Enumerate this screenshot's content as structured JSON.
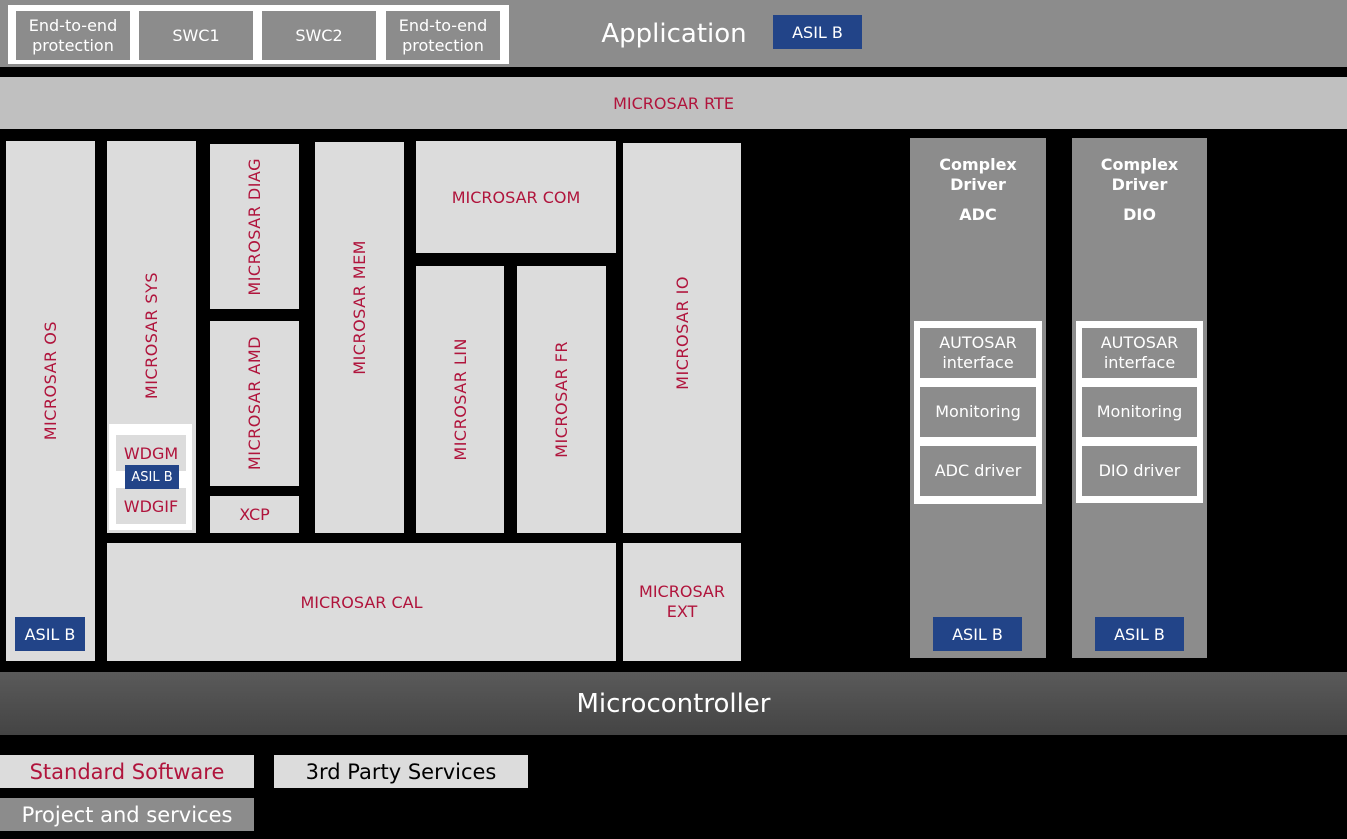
{
  "colors": {
    "background": "#000000",
    "application_band": "#8c8c8c",
    "rte_band": "#c0c0c0",
    "standard_module": "#dcdcdc",
    "standard_text": "#b0143c",
    "asil_badge": "#224488",
    "microcontroller_band": "#4d4d4d"
  },
  "application": {
    "title": "Application",
    "asil": "ASIL B",
    "components": [
      {
        "label": "End-to-end protection"
      },
      {
        "label": "SWC1"
      },
      {
        "label": "SWC2"
      },
      {
        "label": "End-to-end protection"
      }
    ]
  },
  "rte": {
    "label": "MICROSAR RTE"
  },
  "modules": {
    "os": {
      "label": "MICROSAR OS",
      "asil": "ASIL B"
    },
    "sys": {
      "label": "MICROSAR SYS",
      "wdgm": "WDGM",
      "wdg_asil": "ASIL B",
      "wdgif": "WDGIF"
    },
    "diag": {
      "label": "MICROSAR DIAG"
    },
    "amd": {
      "label": "MICROSAR AMD"
    },
    "xcp": {
      "label": "XCP"
    },
    "mem": {
      "label": "MICROSAR MEM"
    },
    "com": {
      "label": "MICROSAR COM"
    },
    "lin": {
      "label": "MICROSAR LIN"
    },
    "fr": {
      "label": "MICROSAR FR"
    },
    "io": {
      "label": "MICROSAR IO"
    },
    "cal": {
      "label": "MICROSAR CAL"
    },
    "ext": {
      "label": "MICROSAR EXT"
    }
  },
  "complex_drivers": [
    {
      "title_line1": "Complex",
      "title_line2": "Driver",
      "name": "ADC",
      "parts": [
        "AUTOSAR interface",
        "Monitoring",
        "ADC driver"
      ],
      "asil": "ASIL B"
    },
    {
      "title_line1": "Complex",
      "title_line2": "Driver",
      "name": "DIO",
      "parts": [
        "AUTOSAR interface",
        "Monitoring",
        "DIO driver"
      ],
      "asil": "ASIL B"
    }
  ],
  "microcontroller": {
    "label": "Microcontroller"
  },
  "legend": {
    "standard_software": "Standard Software",
    "third_party": "3rd Party Services",
    "project_services": "Project and services"
  }
}
